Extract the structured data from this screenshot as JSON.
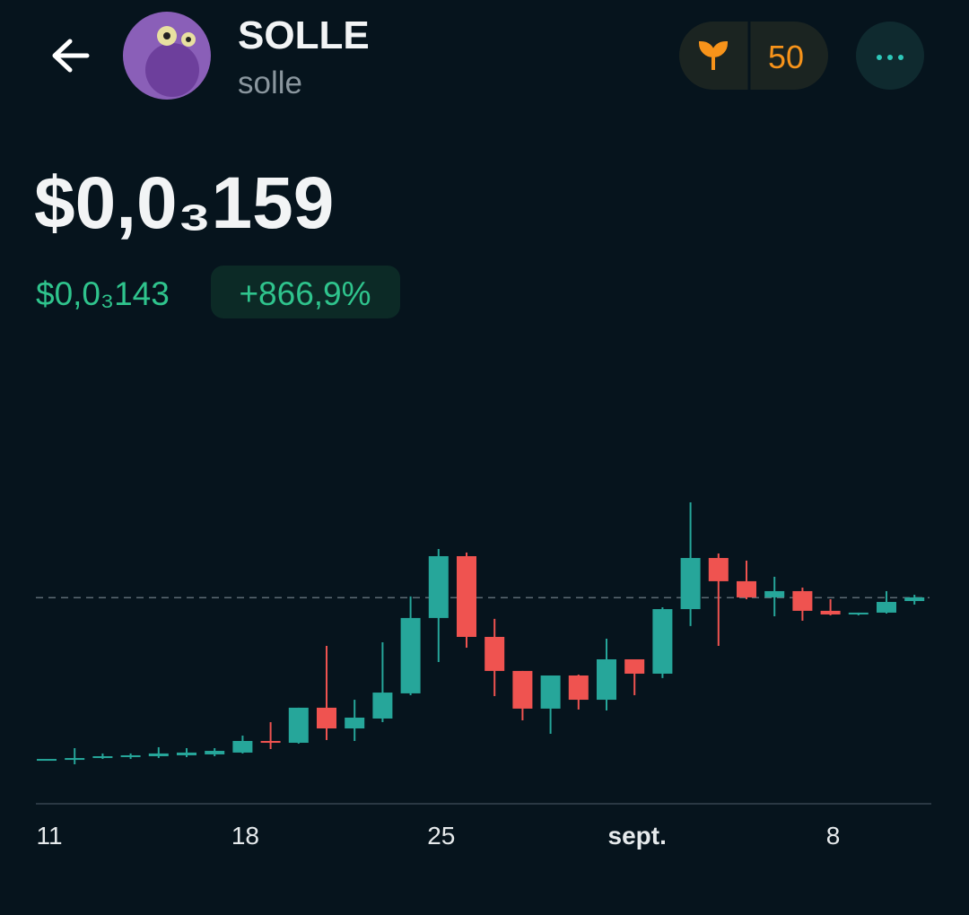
{
  "header": {
    "title": "SOLLE",
    "subtitle": "solle",
    "badge": "50"
  },
  "price": {
    "current": "$0,0₃159",
    "reference": "$0,0₃143",
    "change": "+866,9%"
  },
  "chart_data": {
    "type": "candlestick",
    "categories": [
      "11",
      null,
      null,
      null,
      null,
      null,
      null,
      "18",
      null,
      null,
      null,
      null,
      null,
      null,
      "25",
      null,
      null,
      null,
      null,
      null,
      null,
      "sept.",
      null,
      null,
      null,
      null,
      null,
      null,
      "8",
      null,
      null,
      null
    ],
    "open": [
      1.73e-05,
      1.65e-05,
      1.81e-05,
      1.89e-05,
      1.97e-05,
      2.05e-05,
      2.13e-05,
      2.29e-05,
      3.31e-05,
      3.15e-05,
      6.23e-05,
      4.41e-05,
      5.28e-05,
      7.49e-05,
      0.0001411,
      0.0001954,
      0.0001245,
      9.46e-05,
      6.15e-05,
      9.06e-05,
      6.93e-05,
      0.0001048,
      9.22e-05,
      0.0001489,
      0.0001938,
      0.0001734,
      0.0001592,
      0.0001647,
      0.0001474,
      0.0001442,
      0.0001458,
      0.000156
    ],
    "high": [
      1.73e-05,
      2.68e-05,
      2.21e-05,
      2.21e-05,
      2.76e-05,
      2.68e-05,
      2.68e-05,
      3.78e-05,
      4.96e-05,
      6.23e-05,
      0.0001166,
      6.93e-05,
      0.0001198,
      0.00016,
      0.0002017,
      0.0001986,
      0.0001403,
      9.46e-05,
      9.06e-05,
      9.14e-05,
      0.0001229,
      0.0001048,
      0.0001505,
      0.0002427,
      0.0001978,
      0.0001915,
      0.0001773,
      0.0001678,
      0.0001576,
      0.0001458,
      0.0001647,
      0.0001615
    ],
    "low": [
      1.73e-05,
      1.26e-05,
      1.73e-05,
      1.73e-05,
      1.81e-05,
      1.89e-05,
      1.97e-05,
      2.21e-05,
      2.6e-05,
      3.07e-05,
      3.39e-05,
      3.31e-05,
      4.96e-05,
      7.33e-05,
      0.0001024,
      0.000115,
      7.25e-05,
      5.12e-05,
      3.94e-05,
      6.07e-05,
      5.99e-05,
      7.33e-05,
      8.83e-05,
      0.000134,
      0.0001166,
      0.0001576,
      0.0001426,
      0.0001387,
      0.0001434,
      0.0001434,
      0.000145,
      0.0001529
    ],
    "close": [
      1.73e-05,
      1.81e-05,
      1.97e-05,
      2.05e-05,
      2.21e-05,
      2.29e-05,
      2.44e-05,
      3.31e-05,
      3.15e-05,
      6.23e-05,
      4.41e-05,
      5.36e-05,
      7.56e-05,
      0.0001411,
      0.0001954,
      0.0001245,
      9.46e-05,
      6.15e-05,
      9.06e-05,
      6.93e-05,
      0.0001048,
      9.22e-05,
      0.0001489,
      0.0001938,
      0.0001734,
      0.0001592,
      0.0001647,
      0.0001474,
      0.0001442,
      0.0001458,
      0.0001552,
      0.0001592
    ],
    "up_color": "#26a69a",
    "down_color": "#ef5350",
    "reference_line": 0.000159,
    "ylim": [
      0,
      0.00026
    ]
  }
}
